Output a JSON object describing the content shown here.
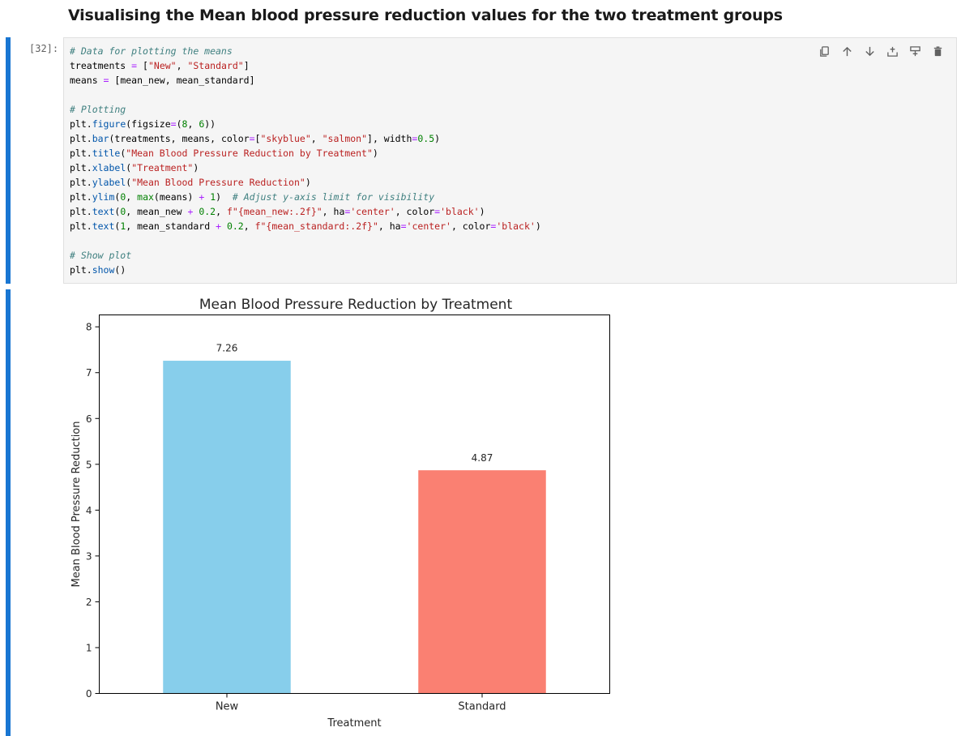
{
  "heading": "Visualising the Mean blood pressure reduction values for the two treatment groups",
  "cell": {
    "prompt": "[32]:",
    "code_lines": [
      [
        [
          "c",
          "# Data for plotting the means"
        ]
      ],
      [
        [
          "t",
          "treatments "
        ],
        [
          "o",
          "="
        ],
        [
          "t",
          " ["
        ],
        [
          "s",
          "\"New\""
        ],
        [
          "t",
          ", "
        ],
        [
          "s",
          "\"Standard\""
        ],
        [
          "t",
          "]"
        ]
      ],
      [
        [
          "t",
          "means "
        ],
        [
          "o",
          "="
        ],
        [
          "t",
          " [mean_new, mean_standard]"
        ]
      ],
      [],
      [
        [
          "c",
          "# Plotting"
        ]
      ],
      [
        [
          "t",
          "plt."
        ],
        [
          "p",
          "figure"
        ],
        [
          "t",
          "(figsize"
        ],
        [
          "o",
          "="
        ],
        [
          "t",
          "("
        ],
        [
          "n",
          "8"
        ],
        [
          "t",
          ", "
        ],
        [
          "n",
          "6"
        ],
        [
          "t",
          "))"
        ]
      ],
      [
        [
          "t",
          "plt."
        ],
        [
          "p",
          "bar"
        ],
        [
          "t",
          "(treatments, means, color"
        ],
        [
          "o",
          "="
        ],
        [
          "t",
          "["
        ],
        [
          "s",
          "\"skyblue\""
        ],
        [
          "t",
          ", "
        ],
        [
          "s",
          "\"salmon\""
        ],
        [
          "t",
          "], width"
        ],
        [
          "o",
          "="
        ],
        [
          "n",
          "0.5"
        ],
        [
          "t",
          ")"
        ]
      ],
      [
        [
          "t",
          "plt."
        ],
        [
          "p",
          "title"
        ],
        [
          "t",
          "("
        ],
        [
          "s",
          "\"Mean Blood Pressure Reduction by Treatment\""
        ],
        [
          "t",
          ")"
        ]
      ],
      [
        [
          "t",
          "plt."
        ],
        [
          "p",
          "xlabel"
        ],
        [
          "t",
          "("
        ],
        [
          "s",
          "\"Treatment\""
        ],
        [
          "t",
          ")"
        ]
      ],
      [
        [
          "t",
          "plt."
        ],
        [
          "p",
          "ylabel"
        ],
        [
          "t",
          "("
        ],
        [
          "s",
          "\"Mean Blood Pressure Reduction\""
        ],
        [
          "t",
          ")"
        ]
      ],
      [
        [
          "t",
          "plt."
        ],
        [
          "p",
          "ylim"
        ],
        [
          "t",
          "("
        ],
        [
          "n",
          "0"
        ],
        [
          "t",
          ", "
        ],
        [
          "n",
          "max"
        ],
        [
          "t",
          "(means) "
        ],
        [
          "o",
          "+"
        ],
        [
          "t",
          " "
        ],
        [
          "n",
          "1"
        ],
        [
          "t",
          ")  "
        ],
        [
          "c",
          "# Adjust y-axis limit for visibility"
        ]
      ],
      [
        [
          "t",
          "plt."
        ],
        [
          "p",
          "text"
        ],
        [
          "t",
          "("
        ],
        [
          "n",
          "0"
        ],
        [
          "t",
          ", mean_new "
        ],
        [
          "o",
          "+"
        ],
        [
          "t",
          " "
        ],
        [
          "n",
          "0.2"
        ],
        [
          "t",
          ", "
        ],
        [
          "s",
          "f\"{mean_new:.2f}\""
        ],
        [
          "t",
          ", ha"
        ],
        [
          "o",
          "="
        ],
        [
          "s",
          "'center'"
        ],
        [
          "t",
          ", color"
        ],
        [
          "o",
          "="
        ],
        [
          "s",
          "'black'"
        ],
        [
          "t",
          ")"
        ]
      ],
      [
        [
          "t",
          "plt."
        ],
        [
          "p",
          "text"
        ],
        [
          "t",
          "("
        ],
        [
          "n",
          "1"
        ],
        [
          "t",
          ", mean_standard "
        ],
        [
          "o",
          "+"
        ],
        [
          "t",
          " "
        ],
        [
          "n",
          "0.2"
        ],
        [
          "t",
          ", "
        ],
        [
          "s",
          "f\"{mean_standard:.2f}\""
        ],
        [
          "t",
          ", ha"
        ],
        [
          "o",
          "="
        ],
        [
          "s",
          "'center'"
        ],
        [
          "t",
          ", color"
        ],
        [
          "o",
          "="
        ],
        [
          "s",
          "'black'"
        ],
        [
          "t",
          ")"
        ]
      ],
      [],
      [
        [
          "c",
          "# Show plot"
        ]
      ],
      [
        [
          "t",
          "plt."
        ],
        [
          "p",
          "show"
        ],
        [
          "t",
          "()"
        ]
      ]
    ]
  },
  "toolbar": {
    "icons": [
      "copy-icon",
      "arrow-up-icon",
      "arrow-down-icon",
      "insert-above-icon",
      "insert-below-icon",
      "delete-icon"
    ]
  },
  "chart_data": {
    "type": "bar",
    "title": "Mean Blood Pressure Reduction by Treatment",
    "xlabel": "Treatment",
    "ylabel": "Mean Blood Pressure Reduction",
    "categories": [
      "New",
      "Standard"
    ],
    "values": [
      7.26,
      4.87
    ],
    "value_labels": [
      "7.26",
      "4.87"
    ],
    "colors": [
      "#87ceeb",
      "#fa8072"
    ],
    "ylim": [
      0,
      8.26
    ],
    "yticks": [
      0,
      1,
      2,
      3,
      4,
      5,
      6,
      7,
      8
    ],
    "bar_width": 0.5,
    "grid": false
  }
}
